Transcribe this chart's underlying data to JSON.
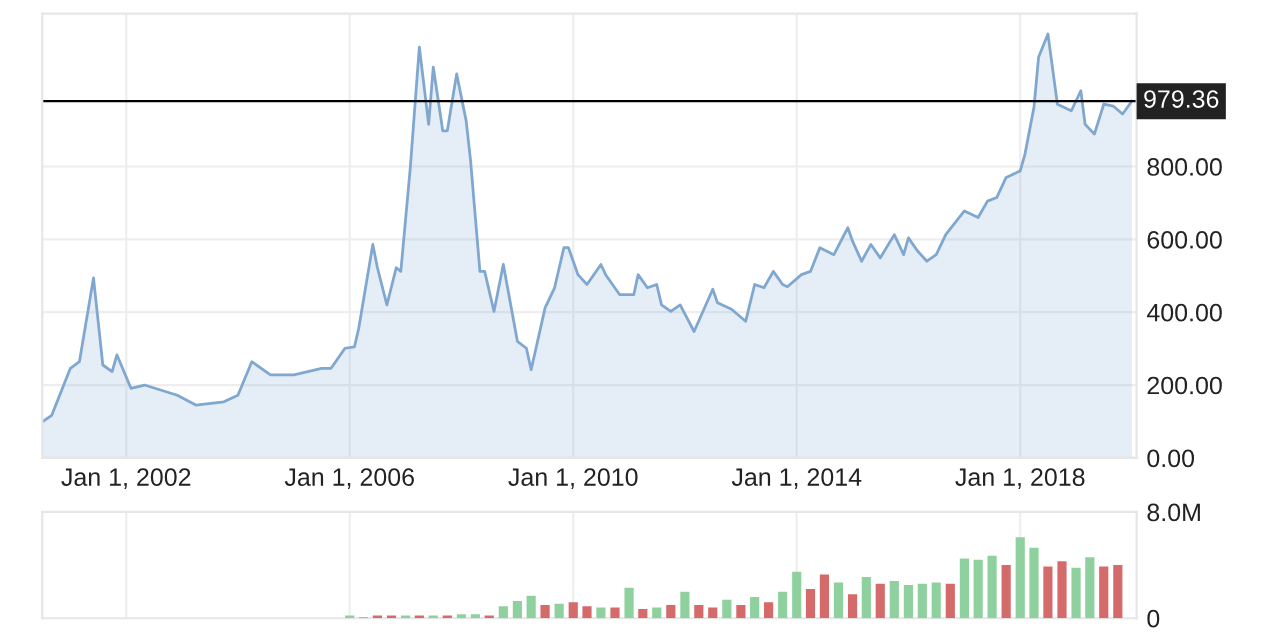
{
  "chart_data": [
    {
      "type": "area",
      "x": [
        "2000-07",
        "2000-09",
        "2001-01",
        "2001-03",
        "2001-06",
        "2001-08",
        "2001-10",
        "2001-11",
        "2002-02",
        "2002-05",
        "2002-12",
        "2003-04",
        "2003-10",
        "2004-01",
        "2004-04",
        "2004-08",
        "2005-01",
        "2005-07",
        "2005-09",
        "2005-12",
        "2006-02",
        "2006-03",
        "2006-06",
        "2006-07",
        "2006-09",
        "2006-11",
        "2006-12",
        "2007-02",
        "2007-04",
        "2007-06",
        "2007-07",
        "2007-09",
        "2007-10",
        "2007-12",
        "2008-02",
        "2008-03",
        "2008-05",
        "2008-06",
        "2008-08",
        "2008-10",
        "2009-01",
        "2009-03",
        "2009-04",
        "2009-07",
        "2009-09",
        "2009-11",
        "2009-12",
        "2010-02",
        "2010-04",
        "2010-07",
        "2010-08",
        "2010-11",
        "2011-02",
        "2011-03",
        "2011-05",
        "2011-07",
        "2011-08",
        "2011-10",
        "2011-12",
        "2012-03",
        "2012-07",
        "2012-08",
        "2012-11",
        "2013-02",
        "2013-04",
        "2013-06",
        "2013-08",
        "2013-10",
        "2013-11",
        "2014-02",
        "2014-04",
        "2014-06",
        "2014-09",
        "2014-12",
        "2015-01",
        "2015-03",
        "2015-05",
        "2015-07",
        "2015-10",
        "2015-12",
        "2016-01",
        "2016-03",
        "2016-05",
        "2016-07",
        "2016-09",
        "2017-01",
        "2017-04",
        "2017-06",
        "2017-08",
        "2017-10",
        "2018-01",
        "2018-02",
        "2018-04",
        "2018-05",
        "2018-07",
        "2018-09",
        "2018-12",
        "2019-02",
        "2019-03",
        "2019-05",
        "2019-07",
        "2019-09",
        "2019-11",
        "2020-01"
      ],
      "series": [
        {
          "color": "#7fa7d0",
          "values": [
            99,
            117,
            246,
            264,
            494,
            255,
            237,
            283,
            191,
            200,
            172,
            145,
            154,
            172,
            264,
            228,
            228,
            246,
            246,
            301,
            305,
            356,
            586,
            522,
            420,
            522,
            512,
            797,
            1128,
            916,
            1073,
            898,
            898,
            1054,
            926,
            816,
            512,
            512,
            402,
            531,
            320,
            301,
            242,
            412,
            467,
            577,
            577,
            503,
            476,
            531,
            503,
            448,
            448,
            503,
            467,
            476,
            420,
            402,
            420,
            347,
            463,
            426,
            408,
            375,
            476,
            467,
            512,
            476,
            470,
            503,
            512,
            577,
            558,
            632,
            595,
            540,
            586,
            549,
            613,
            558,
            604,
            568,
            540,
            558,
            613,
            678,
            660,
            705,
            715,
            770,
            788,
            834,
            963,
            1100,
            1164,
            971,
            953,
            1008,
            916,
            889,
            971,
            966,
            944,
            979.36
          ]
        }
      ],
      "xlim": [
        "2000-07",
        "2020-02"
      ],
      "xticks": [
        {
          "value": "2002-01-01",
          "label": "Jan 1, 2002"
        },
        {
          "value": "2006-01-01",
          "label": "Jan 1, 2006"
        },
        {
          "value": "2010-01-01",
          "label": "Jan 1, 2010"
        },
        {
          "value": "2014-01-01",
          "label": "Jan 1, 2014"
        },
        {
          "value": "2018-01-01",
          "label": "Jan 1, 2018"
        }
      ],
      "ylim": [
        0,
        1220
      ],
      "yticks": [
        {
          "value": 0,
          "label": "0.00"
        },
        {
          "value": 200,
          "label": "200.00"
        },
        {
          "value": 400,
          "label": "400.00"
        },
        {
          "value": 600,
          "label": "600.00"
        },
        {
          "value": 800,
          "label": "800.00"
        }
      ],
      "ref_lines": [
        {
          "axis": "y",
          "value": 979.36,
          "color": "#000000"
        }
      ],
      "annotations": [
        {
          "text": "979.36",
          "x": "2020-01",
          "y": 979.36
        }
      ],
      "grid": true
    },
    {
      "type": "bar",
      "x": [
        "2006-01",
        "2006-04",
        "2006-07",
        "2006-10",
        "2007-01",
        "2007-04",
        "2007-07",
        "2007-10",
        "2008-01",
        "2008-04",
        "2008-07",
        "2008-10",
        "2009-01",
        "2009-04",
        "2009-07",
        "2009-10",
        "2010-01",
        "2010-04",
        "2010-07",
        "2010-10",
        "2011-01",
        "2011-04",
        "2011-07",
        "2011-10",
        "2012-01",
        "2012-04",
        "2012-07",
        "2012-10",
        "2013-01",
        "2013-04",
        "2013-07",
        "2013-10",
        "2014-01",
        "2014-04",
        "2014-07",
        "2014-10",
        "2015-01",
        "2015-04",
        "2015-07",
        "2015-10",
        "2016-01",
        "2016-04",
        "2016-07",
        "2016-10",
        "2017-01",
        "2017-04",
        "2017-07",
        "2017-10",
        "2018-01",
        "2018-04",
        "2018-07",
        "2018-10",
        "2019-01",
        "2019-04",
        "2019-07",
        "2019-10"
      ],
      "values": [
        0.2,
        0.1,
        0.2,
        0.2,
        0.2,
        0.2,
        0.2,
        0.2,
        0.3,
        0.3,
        0.2,
        0.9,
        1.3,
        1.7,
        1.0,
        1.1,
        1.2,
        0.9,
        0.8,
        0.8,
        2.3,
        0.7,
        0.8,
        1.0,
        2.0,
        1.0,
        0.8,
        1.4,
        1.0,
        1.6,
        1.2,
        2.0,
        3.5,
        2.2,
        3.3,
        2.7,
        1.8,
        3.1,
        2.6,
        2.8,
        2.5,
        2.6,
        2.7,
        2.6,
        4.5,
        4.4,
        4.7,
        4.0,
        6.1,
        5.3,
        3.9,
        4.3,
        3.8,
        4.6,
        3.9,
        4.0
      ],
      "colors": [
        "#8fd19e",
        "#8fd19e",
        "#d46a6a",
        "#d46a6a",
        "#8fd19e",
        "#d46a6a",
        "#8fd19e",
        "#d46a6a",
        "#8fd19e",
        "#8fd19e",
        "#d46a6a",
        "#8fd19e",
        "#8fd19e",
        "#8fd19e",
        "#d46a6a",
        "#8fd19e",
        "#d46a6a",
        "#d46a6a",
        "#8fd19e",
        "#d46a6a",
        "#8fd19e",
        "#d46a6a",
        "#8fd19e",
        "#d46a6a",
        "#8fd19e",
        "#d46a6a",
        "#d46a6a",
        "#8fd19e",
        "#d46a6a",
        "#8fd19e",
        "#d46a6a",
        "#8fd19e",
        "#8fd19e",
        "#d46a6a",
        "#d46a6a",
        "#8fd19e",
        "#d46a6a",
        "#8fd19e",
        "#d46a6a",
        "#8fd19e",
        "#8fd19e",
        "#8fd19e",
        "#8fd19e",
        "#d46a6a",
        "#8fd19e",
        "#8fd19e",
        "#8fd19e",
        "#d46a6a",
        "#8fd19e",
        "#8fd19e",
        "#d46a6a",
        "#d46a6a",
        "#8fd19e",
        "#8fd19e",
        "#d46a6a",
        "#d46a6a"
      ],
      "xlim": [
        "2000-07",
        "2020-02"
      ],
      "ylim": [
        0,
        8
      ],
      "yticks": [
        0,
        {
          "value": 8,
          "label": "8.0M"
        }
      ],
      "tick_labels": "y",
      "grid": "x"
    }
  ]
}
